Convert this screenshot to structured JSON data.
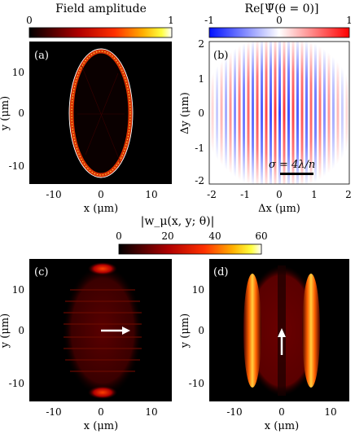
{
  "colorbar_top_left": {
    "title": "Field amplitude",
    "min": "0",
    "max": "1"
  },
  "colorbar_top_right": {
    "title": "Re[Ψ̃(θ = 0)]",
    "min": "-1",
    "mid": "0",
    "max": "1"
  },
  "colorbar_middle": {
    "title": "|w_μ(x, y; θ)|",
    "ticks": [
      "0",
      "20",
      "40",
      "60"
    ]
  },
  "panels": {
    "a": {
      "tag": "(a)",
      "xlabel": "x (μm)",
      "ylabel": "y (μm)",
      "xticks": [
        "-10",
        "0",
        "10"
      ],
      "yticks": [
        "10",
        "0",
        "-10"
      ]
    },
    "b": {
      "tag": "(b)",
      "xlabel": "Δx (μm)",
      "ylabel": "Δy (μm)",
      "xticks": [
        "-2",
        "-1",
        "0",
        "1",
        "2"
      ],
      "yticks": [
        "2",
        "1",
        "0",
        "-1",
        "-2"
      ],
      "annotation": "σ = 4λ/n"
    },
    "c": {
      "tag": "(c)",
      "xlabel": "x (μm)",
      "ylabel": "y (μm)",
      "xticks": [
        "-10",
        "0",
        "10"
      ],
      "yticks": [
        "10",
        "0",
        "-10"
      ]
    },
    "d": {
      "tag": "(d)",
      "xlabel": "x (μm)",
      "ylabel": "y (μm)",
      "xticks": [
        "-10",
        "0",
        "10"
      ],
      "yticks": [
        "10",
        "0",
        "-10"
      ]
    }
  },
  "colors": {
    "hot_dark": "#000000",
    "hot_red": "#e00000",
    "hot_yellow": "#ffe000",
    "cool_blue": "#1f2bff",
    "warm_red": "#ff1f1f"
  }
}
